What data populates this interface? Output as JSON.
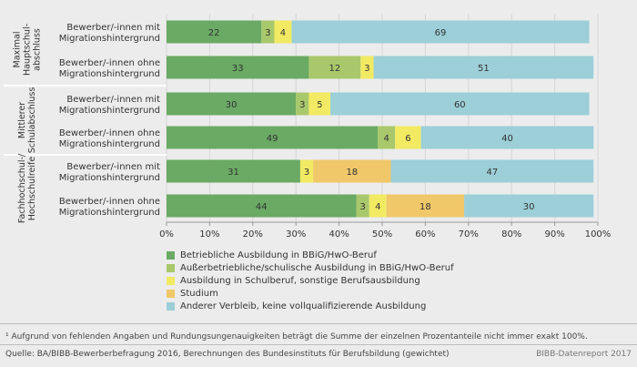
{
  "chart_data": {
    "type": "bar",
    "orientation": "horizontal",
    "stacked": true,
    "xlim": [
      0,
      100
    ],
    "x_ticks": [
      "0%",
      "10%",
      "20%",
      "30%",
      "40%",
      "50%",
      "60%",
      "70%",
      "80%",
      "90%",
      "100%"
    ],
    "groups": [
      {
        "label": [
          "Maximal",
          "Hauptschul-",
          "abschluss"
        ]
      },
      {
        "label": [
          "Mittlerer",
          "Schulabschluss"
        ]
      },
      {
        "label": [
          "Fachhochschul-/",
          "Hochschulreife"
        ]
      }
    ],
    "rows": [
      {
        "group": 0,
        "label": [
          "Bewerber/-innen mit",
          "Migrationshintergrund"
        ],
        "values": [
          22,
          3,
          4,
          0,
          69
        ],
        "labels": [
          "22",
          "3",
          "4",
          "",
          "69"
        ]
      },
      {
        "group": 0,
        "label": [
          "Bewerber/-innen ohne",
          "Migrationshintergrund"
        ],
        "values": [
          33,
          12,
          3,
          0,
          51
        ],
        "labels": [
          "33",
          "12",
          "3",
          "",
          "51"
        ]
      },
      {
        "group": 1,
        "label": [
          "Bewerber/-innen mit",
          "Migrationshintergrund"
        ],
        "values": [
          30,
          3,
          5,
          0,
          60
        ],
        "labels": [
          "30",
          "3",
          "5",
          "",
          "60"
        ]
      },
      {
        "group": 1,
        "label": [
          "Bewerber/-innen ohne",
          "Migrationshintergrund"
        ],
        "values": [
          49,
          4,
          6,
          0,
          40
        ],
        "labels": [
          "49",
          "4",
          "6",
          "",
          "40"
        ]
      },
      {
        "group": 2,
        "label": [
          "Bewerber/-innen mit",
          "Migrationshintergrund"
        ],
        "values": [
          31,
          0,
          3,
          18,
          47
        ],
        "labels": [
          "31",
          "",
          "3",
          "18",
          "47"
        ]
      },
      {
        "group": 2,
        "label": [
          "Bewerber/-innen ohne",
          "Migrationshintergrund"
        ],
        "values": [
          44,
          3,
          4,
          18,
          30
        ],
        "labels": [
          "44",
          "3",
          "4",
          "18",
          "30"
        ]
      }
    ],
    "series": [
      {
        "name": "Betriebliche Ausbildung in BBiG/HwO-Beruf",
        "color": "#6aaa64"
      },
      {
        "name": "Außerbetriebliche/schulische Ausbildung in BBiG/HwO-Beruf",
        "color": "#a9c86b"
      },
      {
        "name": "Ausbildung in Schulberuf, sonstige Berufsausbildung",
        "color": "#f2ea63"
      },
      {
        "name": "Studium",
        "color": "#f0c769"
      },
      {
        "name": "Anderer Verbleib, keine vollqualifizierende Ausbildung",
        "color": "#9ccfd8"
      }
    ]
  },
  "footnote": "¹ Aufgrund von fehlenden Angaben und Rundungsungenauigkeiten beträgt die Summe der einzelnen Prozentanteile nicht immer exakt 100%.",
  "source": "Quelle: BA/BIBB-Bewerberbefragung 2016, Berechnungen des Bundesinstituts für Berufsbildung (gewichtet)",
  "credit": "BIBB-Datenreport 2017"
}
